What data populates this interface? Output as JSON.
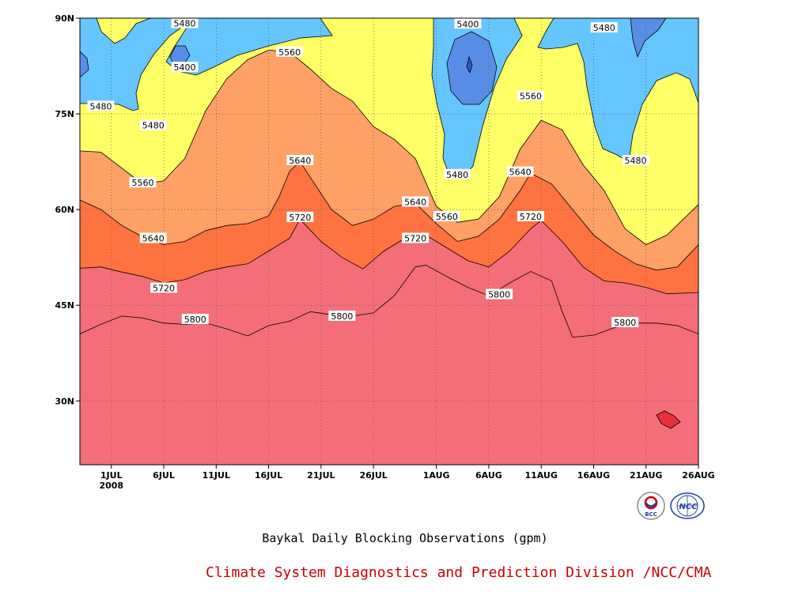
{
  "title": "Baykal Daily Blocking Observations (gpm)",
  "footer": {
    "text": "Climate System Diagnostics and Prediction Division /NCC/CMA",
    "color": "#cc0000"
  },
  "logos": [
    {
      "name": "bcc-logo",
      "text": "BCC"
    },
    {
      "name": "ncc-logo",
      "text": "NCC"
    }
  ],
  "chart_data": {
    "type": "heatmap",
    "subtype": "filled-contour (hovmoller, time vs latitude)",
    "x_axis": {
      "type": "date",
      "range": [
        "2008-06-28",
        "2008-08-26"
      ],
      "ticks": [
        {
          "date": "2008-07-01",
          "label": "1JUL",
          "sublabel": "2008"
        },
        {
          "date": "2008-07-06",
          "label": "6JUL"
        },
        {
          "date": "2008-07-11",
          "label": "11JUL"
        },
        {
          "date": "2008-07-16",
          "label": "16JUL"
        },
        {
          "date": "2008-07-21",
          "label": "21JUL"
        },
        {
          "date": "2008-07-26",
          "label": "26JUL"
        },
        {
          "date": "2008-08-01",
          "label": "1AUG"
        },
        {
          "date": "2008-08-06",
          "label": "6AUG"
        },
        {
          "date": "2008-08-11",
          "label": "11AUG"
        },
        {
          "date": "2008-08-16",
          "label": "16AUG"
        },
        {
          "date": "2008-08-21",
          "label": "21AUG"
        },
        {
          "date": "2008-08-26",
          "label": "26AUG"
        }
      ]
    },
    "y_axis": {
      "unit": "degrees N",
      "range": [
        20,
        90
      ],
      "ticks": [
        {
          "value": 30,
          "label": "30N"
        },
        {
          "value": 45,
          "label": "45N"
        },
        {
          "value": 60,
          "label": "60N"
        },
        {
          "value": 75,
          "label": "75N"
        },
        {
          "value": 90,
          "label": "90N"
        }
      ]
    },
    "grid": "dotted",
    "contour_levels": [
      5400,
      5480,
      5560,
      5640,
      5720,
      5800
    ],
    "fill_colors": {
      "below_5400": "#5a8ee6",
      "5400_5480": "#66c6ff",
      "5480_5560": "#ffff66",
      "5560_5640": "#ffdf9a",
      "5640_5720": "#ffa066",
      "5720_5800": "#ff7340",
      "above_5800": "#f46e7a",
      "above_5880": "#e8303a"
    },
    "contours": [
      {
        "level": 5800,
        "points": [
          [
            "2008-06-28",
            40.5
          ],
          [
            "2008-06-30",
            42
          ],
          [
            "2008-07-02",
            43.3
          ],
          [
            "2008-07-04",
            43
          ],
          [
            "2008-07-06",
            42.2
          ],
          [
            "2008-07-08",
            42
          ],
          [
            "2008-07-10",
            42.2
          ],
          [
            "2008-07-12",
            41.3
          ],
          [
            "2008-07-14",
            40.2
          ],
          [
            "2008-07-16",
            41.8
          ],
          [
            "2008-07-18",
            42.5
          ],
          [
            "2008-07-20",
            44
          ],
          [
            "2008-07-22",
            43.5
          ],
          [
            "2008-07-24",
            43.3
          ],
          [
            "2008-07-26",
            43.8
          ],
          [
            "2008-07-28",
            46.5
          ],
          [
            "2008-07-30",
            51
          ],
          [
            "2008-07-31",
            51.3
          ],
          [
            "2008-08-02",
            49.5
          ],
          [
            "2008-08-04",
            47.8
          ],
          [
            "2008-08-06",
            46.5
          ],
          [
            "2008-08-08",
            48.5
          ],
          [
            "2008-08-10",
            50.3
          ],
          [
            "2008-08-12",
            48.8
          ],
          [
            "2008-08-13",
            44
          ],
          [
            "2008-08-14",
            40
          ],
          [
            "2008-08-16",
            40.3
          ],
          [
            "2008-08-18",
            41.5
          ],
          [
            "2008-08-20",
            42.2
          ],
          [
            "2008-08-22",
            42.2
          ],
          [
            "2008-08-24",
            41.8
          ],
          [
            "2008-08-26",
            40.5
          ]
        ]
      },
      {
        "level": 5720,
        "points": [
          [
            "2008-06-28",
            50.8
          ],
          [
            "2008-06-30",
            51
          ],
          [
            "2008-07-02",
            50.2
          ],
          [
            "2008-07-04",
            49.5
          ],
          [
            "2008-07-06",
            48.5
          ],
          [
            "2008-07-08",
            49
          ],
          [
            "2008-07-10",
            50.3
          ],
          [
            "2008-07-12",
            51
          ],
          [
            "2008-07-14",
            51.5
          ],
          [
            "2008-07-16",
            53.5
          ],
          [
            "2008-07-18",
            55.5
          ],
          [
            "2008-07-19",
            58.5
          ],
          [
            "2008-07-21",
            55
          ],
          [
            "2008-07-23",
            52.5
          ],
          [
            "2008-07-25",
            50.7
          ],
          [
            "2008-07-27",
            53.5
          ],
          [
            "2008-07-29",
            55.5
          ],
          [
            "2008-07-31",
            56
          ],
          [
            "2008-08-02",
            54
          ],
          [
            "2008-08-04",
            52
          ],
          [
            "2008-08-06",
            51
          ],
          [
            "2008-08-08",
            53.5
          ],
          [
            "2008-08-10",
            57
          ],
          [
            "2008-08-11",
            58.3
          ],
          [
            "2008-08-13",
            55
          ],
          [
            "2008-08-15",
            51
          ],
          [
            "2008-08-17",
            48.8
          ],
          [
            "2008-08-19",
            48.5
          ],
          [
            "2008-08-21",
            47.8
          ],
          [
            "2008-08-23",
            46.8
          ],
          [
            "2008-08-26",
            47
          ]
        ]
      },
      {
        "level": 5640,
        "points": [
          [
            "2008-06-28",
            61.5
          ],
          [
            "2008-06-30",
            60
          ],
          [
            "2008-07-02",
            57.5
          ],
          [
            "2008-07-04",
            55.7
          ],
          [
            "2008-07-06",
            54.5
          ],
          [
            "2008-07-08",
            55
          ],
          [
            "2008-07-10",
            56.7
          ],
          [
            "2008-07-12",
            57.5
          ],
          [
            "2008-07-14",
            57.8
          ],
          [
            "2008-07-16",
            59
          ],
          [
            "2008-07-17",
            62
          ],
          [
            "2008-07-18",
            66
          ],
          [
            "2008-07-19",
            67.5
          ],
          [
            "2008-07-20",
            65
          ],
          [
            "2008-07-22",
            60
          ],
          [
            "2008-07-24",
            57.5
          ],
          [
            "2008-07-26",
            58.5
          ],
          [
            "2008-07-28",
            60.5
          ],
          [
            "2008-07-30",
            61
          ],
          [
            "2008-08-01",
            57.8
          ],
          [
            "2008-08-03",
            55
          ],
          [
            "2008-08-05",
            55.8
          ],
          [
            "2008-08-07",
            58.5
          ],
          [
            "2008-08-09",
            63
          ],
          [
            "2008-08-10",
            65.7
          ],
          [
            "2008-08-12",
            64
          ],
          [
            "2008-08-14",
            60
          ],
          [
            "2008-08-16",
            56
          ],
          [
            "2008-08-18",
            53.5
          ],
          [
            "2008-08-20",
            51.5
          ],
          [
            "2008-08-22",
            50.5
          ],
          [
            "2008-08-24",
            51
          ],
          [
            "2008-08-26",
            54.5
          ]
        ]
      },
      {
        "level": 5560,
        "points": [
          [
            "2008-06-28",
            69.2
          ],
          [
            "2008-06-30",
            69
          ],
          [
            "2008-07-02",
            66.5
          ],
          [
            "2008-07-04",
            64
          ],
          [
            "2008-07-06",
            64.5
          ],
          [
            "2008-07-08",
            68
          ],
          [
            "2008-07-10",
            75.5
          ],
          [
            "2008-07-12",
            80.5
          ],
          [
            "2008-07-14",
            83.5
          ],
          [
            "2008-07-16",
            85
          ],
          [
            "2008-07-18",
            84.7
          ],
          [
            "2008-07-20",
            82
          ],
          [
            "2008-07-22",
            79
          ],
          [
            "2008-07-24",
            77
          ],
          [
            "2008-07-26",
            73
          ],
          [
            "2008-07-28",
            71
          ],
          [
            "2008-07-30",
            68
          ],
          [
            "2008-08-01",
            60.5
          ],
          [
            "2008-08-03",
            58
          ],
          [
            "2008-08-05",
            58.5
          ],
          [
            "2008-08-07",
            62
          ],
          [
            "2008-08-09",
            69.5
          ],
          [
            "2008-08-11",
            74
          ],
          [
            "2008-08-13",
            72.5
          ],
          [
            "2008-08-15",
            67
          ],
          [
            "2008-08-17",
            63
          ],
          [
            "2008-08-19",
            57
          ],
          [
            "2008-08-21",
            54.5
          ],
          [
            "2008-08-23",
            56
          ],
          [
            "2008-08-26",
            60.8
          ]
        ]
      }
    ],
    "contour_labels": [
      {
        "text": "5480",
        "date": "2008-07-08",
        "lat": 89.2
      },
      {
        "text": "5400",
        "date": "2008-07-08",
        "lat": 82.3
      },
      {
        "text": "5480",
        "date": "2008-06-30",
        "lat": 76.2
      },
      {
        "text": "5480",
        "date": "2008-07-05",
        "lat": 73.2
      },
      {
        "text": "5560",
        "date": "2008-07-04",
        "lat": 64.2
      },
      {
        "text": "5640",
        "date": "2008-07-05",
        "lat": 55.5
      },
      {
        "text": "5720",
        "date": "2008-07-06",
        "lat": 47.7
      },
      {
        "text": "5800",
        "date": "2008-07-09",
        "lat": 42.8
      },
      {
        "text": "5560",
        "date": "2008-07-18",
        "lat": 84.7
      },
      {
        "text": "5640",
        "date": "2008-07-19",
        "lat": 67.7
      },
      {
        "text": "5720",
        "date": "2008-07-19",
        "lat": 58.8
      },
      {
        "text": "5800",
        "date": "2008-07-23",
        "lat": 43.3
      },
      {
        "text": "5640",
        "date": "2008-07-30",
        "lat": 61.2
      },
      {
        "text": "5720",
        "date": "2008-07-30",
        "lat": 55.5
      },
      {
        "text": "5400",
        "date": "2008-08-04",
        "lat": 89.1
      },
      {
        "text": "5480",
        "date": "2008-08-03",
        "lat": 65.5
      },
      {
        "text": "5560",
        "date": "2008-08-02",
        "lat": 58.9
      },
      {
        "text": "5800",
        "date": "2008-08-07",
        "lat": 46.7
      },
      {
        "text": "5640",
        "date": "2008-08-09",
        "lat": 65.9
      },
      {
        "text": "5720",
        "date": "2008-08-10",
        "lat": 58.9
      },
      {
        "text": "5560",
        "date": "2008-08-10",
        "lat": 77.8
      },
      {
        "text": "5480",
        "date": "2008-08-17",
        "lat": 88.5
      },
      {
        "text": "5480",
        "date": "2008-08-20",
        "lat": 67.7
      },
      {
        "text": "5800",
        "date": "2008-08-19",
        "lat": 42.3
      }
    ]
  }
}
